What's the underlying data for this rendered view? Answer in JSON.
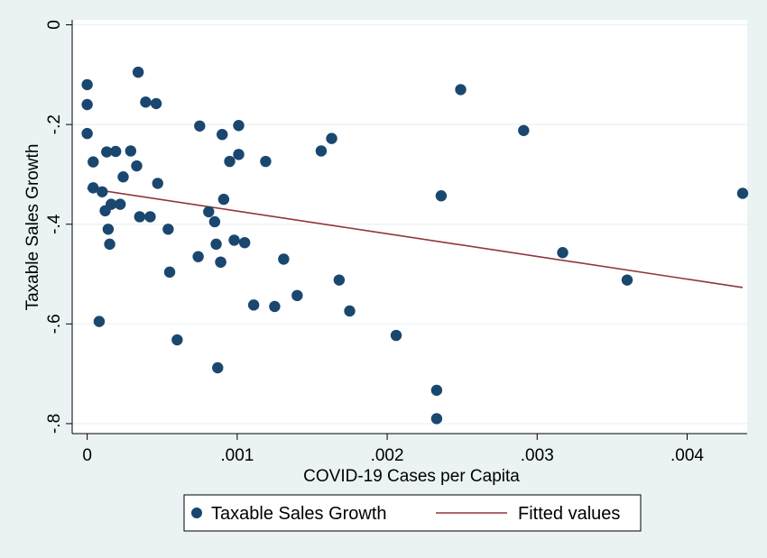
{
  "chart_data": {
    "type": "scatter",
    "title": "",
    "xlabel": "COVID-19 Cases per Capita",
    "ylabel": "Taxable Sales Growth",
    "xlim": [
      -0.0001,
      0.0044
    ],
    "ylim": [
      -0.82,
      0.01
    ],
    "x_ticks": [
      0,
      0.001,
      0.002,
      0.003,
      0.004
    ],
    "x_tick_labels": [
      "0",
      ".001",
      ".002",
      ".003",
      ".004"
    ],
    "y_ticks": [
      0,
      -0.2,
      -0.4,
      -0.6,
      -0.8
    ],
    "y_tick_labels": [
      "0",
      "-.2",
      "-.4",
      "-.6",
      "-.8"
    ],
    "grid": "horizontal",
    "legend_position": "bottom",
    "series": [
      {
        "name": "Taxable Sales Growth",
        "kind": "scatter",
        "color": "#1a476f",
        "x": [
          0.0,
          0.0,
          0.0,
          4e-05,
          4e-05,
          8e-05,
          0.0001,
          0.00012,
          0.00013,
          0.00014,
          0.00015,
          0.00016,
          0.00019,
          0.00022,
          0.00024,
          0.00029,
          0.00033,
          0.00034,
          0.00035,
          0.00039,
          0.00042,
          0.00046,
          0.00047,
          0.00054,
          0.00055,
          0.0006,
          0.00074,
          0.00075,
          0.00081,
          0.00085,
          0.00086,
          0.00087,
          0.00089,
          0.00089,
          0.0009,
          0.00091,
          0.00095,
          0.00098,
          0.00101,
          0.00101,
          0.00105,
          0.00111,
          0.00119,
          0.00125,
          0.00131,
          0.0014,
          0.00156,
          0.00163,
          0.00168,
          0.00175,
          0.00206,
          0.00233,
          0.00233,
          0.00236,
          0.00249,
          0.00291,
          0.00317,
          0.0036,
          0.00437
        ],
        "y": [
          -0.12,
          -0.16,
          -0.218,
          -0.275,
          -0.327,
          -0.595,
          -0.335,
          -0.373,
          -0.255,
          -0.41,
          -0.44,
          -0.36,
          -0.254,
          -0.36,
          -0.305,
          -0.253,
          -0.283,
          -0.095,
          -0.385,
          -0.155,
          -0.385,
          -0.158,
          -0.318,
          -0.41,
          -0.496,
          -0.632,
          -0.465,
          -0.203,
          -0.375,
          -0.395,
          -0.44,
          -0.688,
          -0.476,
          -0.476,
          -0.22,
          -0.35,
          -0.274,
          -0.432,
          -0.26,
          -0.202,
          -0.437,
          -0.562,
          -0.274,
          -0.565,
          -0.47,
          -0.543,
          -0.253,
          -0.228,
          -0.512,
          -0.574,
          -0.623,
          -0.733,
          -0.79,
          -0.343,
          -0.13,
          -0.212,
          -0.457,
          -0.512,
          -0.338
        ]
      },
      {
        "name": "Fitted values",
        "kind": "line",
        "color": "#90353b",
        "x": [
          0,
          0.00437
        ],
        "y": [
          -0.328,
          -0.527
        ]
      }
    ]
  },
  "colors": {
    "outer_background": "#eaf2f3",
    "plot_background": "#ffffff",
    "grid": "#eaf2f3",
    "axis": "#000000",
    "marker": "#1a476f",
    "fit_line": "#90353b"
  }
}
